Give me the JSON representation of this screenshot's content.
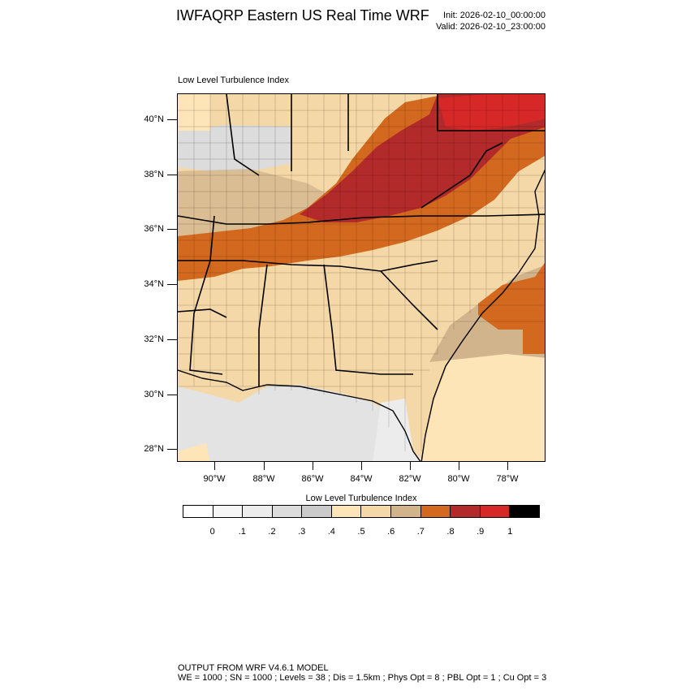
{
  "header": {
    "title": "IWFAQRP Eastern US Real Time WRF",
    "init": "Init: 2026-02-10_00:00:00",
    "valid": "Valid: 2026-02-10_23:00:00"
  },
  "panel": {
    "title": "Low Level Turbulence Index"
  },
  "map": {
    "region": "Southeastern United States",
    "lat_labels": [
      "40°N",
      "38°N",
      "36°N",
      "34°N",
      "32°N",
      "30°N",
      "28°N"
    ],
    "lon_labels": [
      "90°W",
      "88°W",
      "86°W",
      "84°W",
      "82°W",
      "80°W",
      "78°W"
    ],
    "lat_range_deg": [
      27.5,
      41
    ],
    "lon_range_deg": [
      -91.5,
      -76.8
    ]
  },
  "colorbar": {
    "title": "Low Level Turbulence Index",
    "levels": [
      "0",
      ".1",
      ".2",
      ".3",
      ".4",
      ".5",
      ".6",
      ".7",
      ".8",
      ".9",
      "1"
    ],
    "colors": [
      "#ffffff",
      "#f6f6f6",
      "#ececec",
      "#dcdcdc",
      "#cacaca",
      "#fde5b8",
      "#f5d8a8",
      "#d2b48c",
      "#d2691e",
      "#b22a2a",
      "#d72828",
      "#000000"
    ]
  },
  "footer": {
    "line1": "OUTPUT FROM WRF V4.6.1 MODEL",
    "line2": "WE = 1000 ; SN = 1000 ; Levels = 38 ; Dis = 1.5km ; Phys Opt = 8 ; PBL Opt = 1 ; Cu Opt = 3"
  }
}
